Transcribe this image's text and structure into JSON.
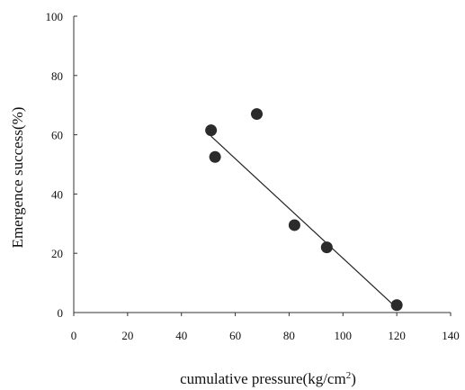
{
  "chart_data": {
    "type": "scatter",
    "xlabel": "cumulative pressure(kg/cm",
    "xlabel_superscript": "2",
    "xlabel_suffix": ")",
    "ylabel": "Emergence success(%)",
    "xlim": [
      0,
      140
    ],
    "ylim": [
      0,
      100
    ],
    "x_ticks": [
      0,
      20,
      40,
      60,
      80,
      100,
      120,
      140
    ],
    "y_ticks": [
      0,
      20,
      40,
      60,
      80,
      100
    ],
    "grid": false,
    "legend": "none",
    "series": [
      {
        "points": [
          {
            "x": 51,
            "y": 61.5
          },
          {
            "x": 52.5,
            "y": 52.5
          },
          {
            "x": 68,
            "y": 67
          },
          {
            "x": 82,
            "y": 29.5
          },
          {
            "x": 94,
            "y": 22
          },
          {
            "x": 120,
            "y": 2.5
          }
        ]
      }
    ],
    "trendline": {
      "x1": 51,
      "y1": 59.5,
      "x2": 120,
      "y2": 1.5
    },
    "colors": {
      "marker": "#2b2b2b",
      "line": "#222222",
      "axis": "#333333"
    }
  }
}
